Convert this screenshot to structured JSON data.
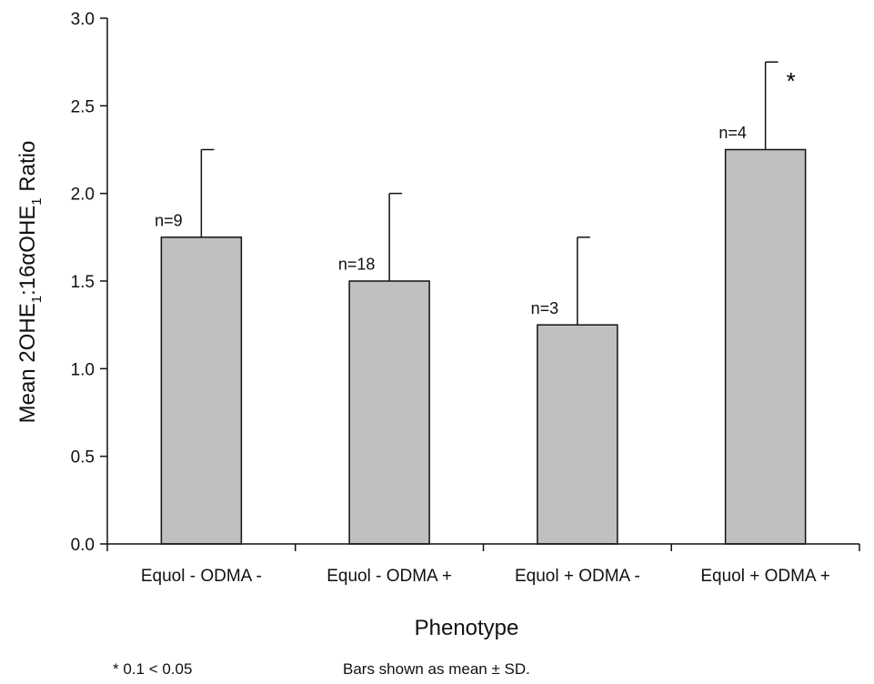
{
  "chart_data": {
    "type": "bar",
    "categories": [
      "Equol - ODMA -",
      "Equol - ODMA +",
      "Equol + ODMA -",
      "Equol + ODMA +"
    ],
    "values": [
      1.75,
      1.5,
      1.25,
      2.25
    ],
    "error_plus": [
      0.5,
      0.5,
      0.5,
      0.5
    ],
    "sample_labels": [
      "n=9",
      "n=18",
      "n=3",
      "n=4"
    ],
    "significance_marks": [
      "",
      "",
      "",
      "*"
    ],
    "xlabel": "Phenotype",
    "ylabel": {
      "parts": [
        "Mean 2OHE",
        "1",
        ":16αOHE",
        "1",
        " Ratio"
      ]
    },
    "ylim": [
      0,
      3.0
    ],
    "yticks": [
      "0.0",
      "0.5",
      "1.0",
      "1.5",
      "2.0",
      "2.5",
      "3.0"
    ],
    "grid": false,
    "bar_color": "#c0c0c0",
    "edge_color": "#111111"
  },
  "footnotes": {
    "significance": "* 0.1 < 0.05",
    "bars_note": "Bars shown as mean ± SD."
  }
}
